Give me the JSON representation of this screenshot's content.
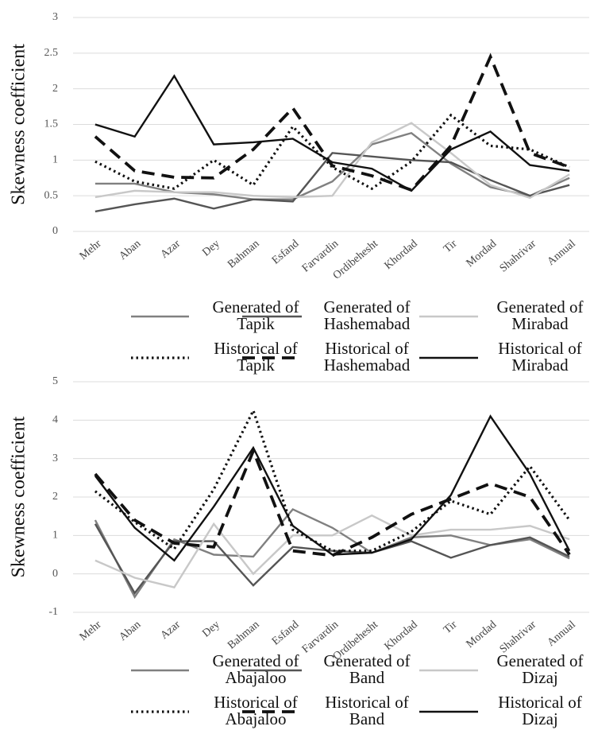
{
  "chart_data": [
    {
      "type": "line",
      "y_label": "Skewness coefficient",
      "categories": [
        "Mehr",
        "Aban",
        "Azar",
        "Dey",
        "Bahman",
        "Esfand",
        "Farvardin",
        "Ordibehesht",
        "Khordad",
        "Tir",
        "Mordad",
        "Shahrivar",
        "Annual"
      ],
      "ylim": [
        0,
        3
      ],
      "yticks": [
        0,
        0.5,
        1,
        1.5,
        2,
        2.5,
        3
      ],
      "grid": true,
      "series": [
        {
          "name": "Generated of Tapik",
          "color": "#808080",
          "dash": "solid",
          "values": [
            0.67,
            0.67,
            0.55,
            0.52,
            0.45,
            0.45,
            0.7,
            1.22,
            1.38,
            0.95,
            0.62,
            0.5,
            0.75
          ]
        },
        {
          "name": "Generated of Hashemabad",
          "color": "#555555",
          "dash": "solid",
          "values": [
            0.28,
            0.38,
            0.46,
            0.32,
            0.45,
            0.42,
            1.1,
            1.05,
            1.0,
            0.97,
            0.72,
            0.5,
            0.65
          ]
        },
        {
          "name": "Generated of Mirabad",
          "color": "#c8c8c8",
          "dash": "solid",
          "values": [
            0.48,
            0.57,
            0.55,
            0.55,
            0.5,
            0.48,
            0.5,
            1.25,
            1.52,
            1.1,
            0.65,
            0.47,
            0.8
          ]
        },
        {
          "name": "Historical of Tapik",
          "color": "#111111",
          "dash": "dotted",
          "values": [
            0.98,
            0.7,
            0.6,
            1.0,
            0.65,
            1.47,
            0.9,
            0.6,
            0.98,
            1.63,
            1.2,
            1.15,
            0.9
          ]
        },
        {
          "name": "Historical of Hashemabad",
          "color": "#111111",
          "dash": "dashed",
          "values": [
            1.33,
            0.85,
            0.76,
            0.75,
            1.15,
            1.73,
            0.92,
            0.78,
            0.58,
            1.2,
            2.45,
            1.1,
            0.9
          ]
        },
        {
          "name": "Historical of Mirabad",
          "color": "#111111",
          "dash": "solid",
          "values": [
            1.5,
            1.33,
            2.18,
            1.22,
            1.25,
            1.3,
            0.97,
            0.88,
            0.57,
            1.15,
            1.4,
            0.93,
            0.85
          ]
        }
      ]
    },
    {
      "type": "line",
      "y_label": "Skewness coefficient",
      "categories": [
        "Mehr",
        "Aban",
        "Azar",
        "Dey",
        "Bahman",
        "Esfand",
        "Farvardin",
        "Ordibehesht",
        "Khordad",
        "Tir",
        "Mordad",
        "Shahrivar",
        "Annual"
      ],
      "ylim": [
        -1,
        5
      ],
      "yticks": [
        -1,
        0,
        1,
        2,
        3,
        4,
        5
      ],
      "grid": true,
      "series": [
        {
          "name": "Generated of Abajaloo",
          "color": "#808080",
          "dash": "solid",
          "values": [
            1.4,
            -0.6,
            0.9,
            0.5,
            0.45,
            1.68,
            1.2,
            0.55,
            0.95,
            1.0,
            0.75,
            0.9,
            0.4
          ]
        },
        {
          "name": "Generated of Band",
          "color": "#555555",
          "dash": "solid",
          "values": [
            1.3,
            -0.5,
            0.85,
            0.85,
            -0.3,
            0.7,
            0.6,
            0.55,
            0.85,
            0.42,
            0.75,
            0.95,
            0.45
          ]
        },
        {
          "name": "Generated of Dizaj",
          "color": "#c8c8c8",
          "dash": "solid",
          "values": [
            0.35,
            -0.1,
            -0.35,
            1.3,
            0.0,
            1.0,
            1.0,
            1.52,
            1.0,
            1.15,
            1.15,
            1.25,
            0.9
          ]
        },
        {
          "name": "Historical of Abajaloo",
          "color": "#111111",
          "dash": "dotted",
          "values": [
            2.15,
            1.35,
            0.65,
            2.2,
            4.25,
            1.15,
            0.6,
            0.6,
            1.1,
            1.9,
            1.55,
            2.8,
            1.4
          ]
        },
        {
          "name": "Historical of Band",
          "color": "#111111",
          "dash": "dashed",
          "values": [
            2.6,
            1.4,
            0.8,
            0.7,
            3.2,
            0.6,
            0.48,
            0.95,
            1.55,
            1.95,
            2.35,
            2.0,
            0.5
          ]
        },
        {
          "name": "Historical of Dizaj",
          "color": "#111111",
          "dash": "solid",
          "values": [
            2.55,
            1.2,
            0.35,
            1.75,
            3.28,
            1.25,
            0.5,
            0.55,
            0.9,
            2.05,
            4.1,
            2.6,
            0.6
          ]
        }
      ]
    }
  ]
}
